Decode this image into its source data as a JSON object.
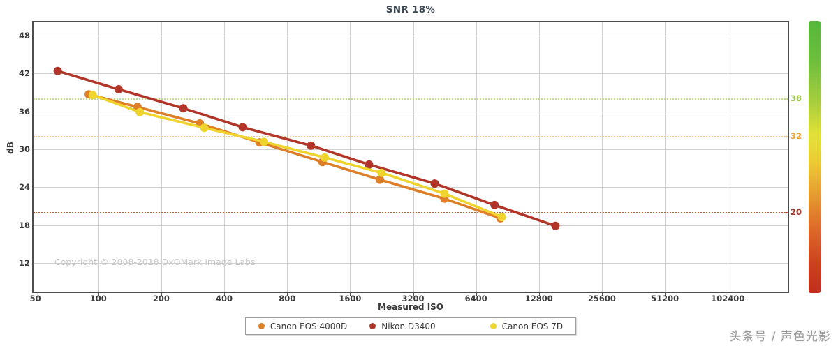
{
  "header": {
    "title": "SNR 18%"
  },
  "copyright_text": "Copyright © 2008-2018 DxOMark Image Labs",
  "watermark_text": "头条号 / 声色光影",
  "colors": {
    "grid": "#cfcfcf",
    "plot_border": "#4e4e4e",
    "tick_text": "#3b3b3b",
    "title_text": "#3e4854",
    "gradient_top": "#55b83a",
    "gradient_bottom": "#c22d1b"
  },
  "chart_data": {
    "type": "line",
    "title": "SNR 18%",
    "xlabel": "Measured ISO",
    "ylabel": "dB",
    "x_scale": "log2",
    "grid": true,
    "legend_position": "bottom",
    "x_ticks": [
      50,
      100,
      200,
      400,
      800,
      1600,
      3200,
      6400,
      12800,
      25600,
      51200,
      102400
    ],
    "y_ticks": [
      12,
      18,
      24,
      30,
      36,
      42,
      48
    ],
    "xlim": [
      49,
      198000
    ],
    "ylim": [
      7.5,
      50.1
    ],
    "thresholds": [
      {
        "value": 38,
        "line_color": "#bcdc8c",
        "label_color": "#9cc93c"
      },
      {
        "value": 32,
        "line_color": "#f2c983",
        "label_color": "#f0a23c"
      },
      {
        "value": 20,
        "line_color": "#c4553f",
        "label_color": "#a93226"
      }
    ],
    "series": [
      {
        "name": "Canon EOS 4000D",
        "color": "#de7e26",
        "points": [
          [
            90,
            38.7
          ],
          [
            154,
            36.7
          ],
          [
            306,
            34.1
          ],
          [
            590,
            31.1
          ],
          [
            1180,
            28.0
          ],
          [
            2220,
            25.2
          ],
          [
            4520,
            22.2
          ],
          [
            8370,
            19.1
          ]
        ]
      },
      {
        "name": "Nikon D3400",
        "color": "#b13528",
        "points": [
          [
            64,
            42.4
          ],
          [
            125,
            39.5
          ],
          [
            255,
            36.5
          ],
          [
            490,
            33.5
          ],
          [
            1040,
            30.6
          ],
          [
            1970,
            27.6
          ],
          [
            4060,
            24.6
          ],
          [
            7850,
            21.2
          ],
          [
            15350,
            17.9
          ]
        ]
      },
      {
        "name": "Canon EOS 7D",
        "color": "#efd42d",
        "points": [
          [
            94,
            38.6
          ],
          [
            158,
            35.9
          ],
          [
            321,
            33.4
          ],
          [
            620,
            31.2
          ],
          [
            1210,
            28.7
          ],
          [
            2260,
            26.3
          ],
          [
            4520,
            23.0
          ],
          [
            8500,
            19.3
          ]
        ]
      }
    ]
  }
}
